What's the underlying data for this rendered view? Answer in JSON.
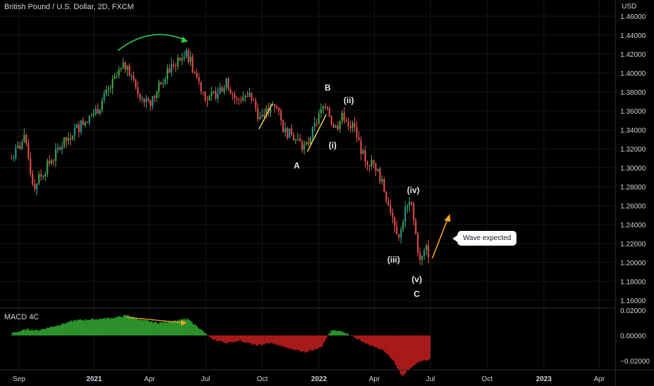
{
  "header": {
    "title": "British Pound / U.S. Dollar, 2D, FXCM",
    "currency": "USD",
    "macd_label": "MACD 4C"
  },
  "annotations": {
    "callout": "Wave expected",
    "waves": [
      "A",
      "B",
      "(i)",
      "(ii)",
      "(iii)",
      "(iv)",
      "(v)",
      "C"
    ]
  },
  "colors": {
    "up": "#26a69a",
    "up_bright": "#4caf50",
    "down": "#ef5350",
    "macd_pos": "#2e9e2e",
    "macd_neg": "#b71c1c",
    "arrow_green": "#2ecc40",
    "arrow_orange": "#f5a623",
    "line_yellow": "#f5d547"
  },
  "chart_data": [
    {
      "type": "line",
      "title": "British Pound / U.S. Dollar, 2D, FXCM",
      "ylabel": "USD",
      "ylim": [
        1.15,
        1.47
      ],
      "y_ticks": [
        "1.46000",
        "1.44000",
        "1.42000",
        "1.40000",
        "1.38000",
        "1.36000",
        "1.34000",
        "1.32000",
        "1.30000",
        "1.28000",
        "1.26000",
        "1.24000",
        "1.22000",
        "1.20000",
        "1.18000",
        "1.16000"
      ],
      "x_ticks": [
        "Sep",
        "2021",
        "Apr",
        "Jul",
        "Oct",
        "2022",
        "Apr",
        "Jul",
        "Oct",
        "2023",
        "Apr"
      ],
      "series": [
        {
          "x": [
            "2020-08-20",
            "2020-09-10",
            "2020-09-25",
            "2020-10-15",
            "2020-11-05",
            "2020-12-01",
            "2021-01-05",
            "2021-02-10",
            "2021-02-24",
            "2021-03-10",
            "2021-04-05",
            "2021-04-20",
            "2021-05-10",
            "2021-06-01",
            "2021-06-20",
            "2021-07-05",
            "2021-07-20",
            "2021-08-05",
            "2021-08-20",
            "2021-09-10",
            "2021-09-28",
            "2021-10-20",
            "2021-11-05",
            "2021-11-25",
            "2021-12-10",
            "2022-01-05",
            "2022-01-12",
            "2022-01-26",
            "2022-02-10",
            "2022-02-28",
            "2022-03-15",
            "2022-04-05",
            "2022-04-25",
            "2022-05-12",
            "2022-05-20",
            "2022-05-31",
            "2022-06-14",
            "2022-06-25",
            "2022-07-01"
          ],
          "values": [
            1.31,
            1.33,
            1.28,
            1.3,
            1.32,
            1.34,
            1.36,
            1.4,
            1.41,
            1.38,
            1.37,
            1.39,
            1.41,
            1.42,
            1.39,
            1.37,
            1.38,
            1.39,
            1.37,
            1.38,
            1.35,
            1.37,
            1.34,
            1.33,
            1.32,
            1.36,
            1.37,
            1.34,
            1.355,
            1.34,
            1.31,
            1.3,
            1.26,
            1.225,
            1.255,
            1.26,
            1.2,
            1.215,
            1.205
          ]
        }
      ]
    },
    {
      "type": "bar",
      "title": "MACD 4C",
      "ylim": [
        -0.035,
        0.022
      ],
      "y_ticks": [
        "0.02000",
        "0.00000",
        "−0.02000"
      ],
      "series": [
        {
          "name": "MACD 4C",
          "x": [
            "2020-08-20",
            "2020-09-15",
            "2020-09-30",
            "2020-11-01",
            "2020-12-01",
            "2021-01-05",
            "2021-02-01",
            "2021-02-24",
            "2021-03-20",
            "2021-04-15",
            "2021-05-15",
            "2021-06-01",
            "2021-06-20",
            "2021-07-10",
            "2021-08-05",
            "2021-08-25",
            "2021-09-20",
            "2021-10-15",
            "2021-11-10",
            "2021-12-10",
            "2022-01-05",
            "2022-01-20",
            "2022-02-10",
            "2022-03-01",
            "2022-03-20",
            "2022-04-15",
            "2022-05-01",
            "2022-05-15",
            "2022-06-01",
            "2022-06-15",
            "2022-07-01"
          ],
          "values": [
            0.002,
            0.005,
            0.004,
            0.008,
            0.012,
            0.013,
            0.014,
            0.016,
            0.012,
            0.01,
            0.012,
            0.013,
            0.006,
            -0.003,
            -0.006,
            -0.004,
            -0.008,
            -0.006,
            -0.01,
            -0.013,
            -0.009,
            0.004,
            0.003,
            -0.002,
            -0.007,
            -0.012,
            -0.02,
            -0.032,
            -0.025,
            -0.02,
            -0.019
          ]
        }
      ]
    }
  ]
}
